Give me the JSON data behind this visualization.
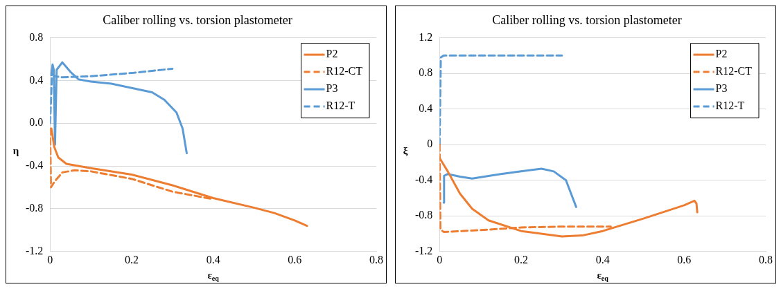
{
  "chart_data": [
    {
      "type": "line",
      "title": "Caliber rolling vs. torsion plastometer",
      "xlabel": "ε$_{eq}$",
      "ylabel": "η",
      "xlim": [
        0,
        0.8
      ],
      "xticks": [
        0,
        0.2,
        0.4,
        0.6,
        0.8
      ],
      "ylim": [
        -1.2,
        0.8
      ],
      "yticks": [
        -1.2,
        -0.8,
        -0.4,
        {
          "value": 0,
          "label": "0.0"
        },
        0.4,
        0.8
      ],
      "grid": "y",
      "legend": "top right",
      "marker": "none",
      "series": [
        {
          "name": "P2",
          "color": "#ed7d31",
          "line_style": "solid",
          "x": [
            0.003,
            0.006,
            0.01,
            0.02,
            0.04,
            0.1,
            0.2,
            0.3,
            0.4,
            0.5,
            0.55,
            0.6,
            0.63
          ],
          "values": [
            -0.05,
            -0.12,
            -0.22,
            -0.32,
            -0.38,
            -0.42,
            -0.48,
            -0.58,
            -0.7,
            -0.79,
            -0.84,
            -0.91,
            -0.96
          ]
        },
        {
          "name": "R12-CT",
          "color": "#ed7d31",
          "line_style": "dashed",
          "x": [
            0,
            0.002,
            0.01,
            0.03,
            0.06,
            0.1,
            0.2,
            0.3,
            0.4
          ],
          "values": [
            -0.05,
            -0.6,
            -0.55,
            -0.46,
            -0.44,
            -0.45,
            -0.52,
            -0.64,
            -0.71
          ]
        },
        {
          "name": "P3",
          "color": "#5b9bd5",
          "line_style": "solid",
          "x": [
            0.003,
            0.006,
            0.009,
            0.012,
            0.016,
            0.03,
            0.05,
            0.07,
            0.1,
            0.15,
            0.2,
            0.25,
            0.28,
            0.31,
            0.325,
            0.335
          ],
          "values": [
            0.45,
            0.55,
            0.5,
            -0.2,
            0.5,
            0.57,
            0.48,
            0.41,
            0.39,
            0.37,
            0.33,
            0.29,
            0.22,
            0.1,
            -0.05,
            -0.28
          ]
        },
        {
          "name": "R12-T",
          "color": "#5b9bd5",
          "line_style": "dashed",
          "x": [
            0,
            0.005,
            0.01,
            0.03,
            0.1,
            0.2,
            0.3
          ],
          "values": [
            0,
            0.5,
            0.44,
            0.43,
            0.44,
            0.47,
            0.51
          ]
        }
      ]
    },
    {
      "type": "line",
      "title": "Caliber rolling vs. torsion plastometer",
      "xlabel": "ε$_{eq}$",
      "ylabel": "ξ",
      "xlim": [
        0,
        0.8
      ],
      "xticks": [
        0,
        0.2,
        0.4,
        0.6,
        0.8
      ],
      "ylim": [
        -1.2,
        1.2
      ],
      "yticks": [
        -1.2,
        -0.8,
        -0.4,
        0,
        0.4,
        0.8,
        1.2
      ],
      "grid": "y",
      "legend": "top right",
      "marker": "none",
      "series": [
        {
          "name": "P2",
          "color": "#ed7d31",
          "line_style": "solid",
          "x": [
            0,
            0.02,
            0.05,
            0.08,
            0.12,
            0.2,
            0.3,
            0.35,
            0.4,
            0.5,
            0.6,
            0.625,
            0.63,
            0.632
          ],
          "values": [
            -0.15,
            -0.3,
            -0.55,
            -0.72,
            -0.85,
            -0.97,
            -1.03,
            -1.02,
            -0.97,
            -0.83,
            -0.68,
            -0.63,
            -0.66,
            -0.76
          ]
        },
        {
          "name": "R12-CT",
          "color": "#ed7d31",
          "line_style": "dashed",
          "x": [
            0,
            0.002,
            0.01,
            0.1,
            0.2,
            0.3,
            0.42
          ],
          "values": [
            0,
            -0.95,
            -0.98,
            -0.96,
            -0.93,
            -0.92,
            -0.92
          ]
        },
        {
          "name": "P3",
          "color": "#5b9bd5",
          "line_style": "solid",
          "x": [
            0.01,
            0.011,
            0.02,
            0.05,
            0.08,
            0.15,
            0.2,
            0.25,
            0.28,
            0.31,
            0.335
          ],
          "values": [
            -0.65,
            -0.35,
            -0.33,
            -0.36,
            -0.38,
            -0.33,
            -0.3,
            -0.27,
            -0.3,
            -0.4,
            -0.7
          ]
        },
        {
          "name": "R12-T",
          "color": "#5b9bd5",
          "line_style": "dashed",
          "x": [
            0,
            0.003,
            0.01,
            0.3
          ],
          "values": [
            0,
            0.98,
            1.0,
            1.0
          ]
        }
      ]
    }
  ]
}
